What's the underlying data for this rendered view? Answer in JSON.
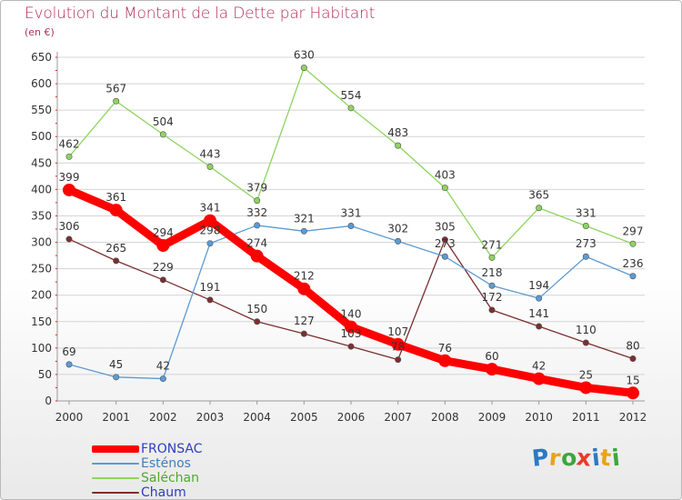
{
  "header": {
    "title": "Evolution du Montant de la Dette par Habitant",
    "subtitle": "(en €)"
  },
  "colors": {
    "title": "#b3305e",
    "axis_text": "#333333",
    "grid": "#d4d4d4",
    "fronsac": "#ff0000",
    "estenos": "#5b9bd5",
    "salechan": "#8ed45f",
    "chaum": "#7b2f2f"
  },
  "chart_data": {
    "type": "line",
    "title": "Evolution du Montant de la Dette par Habitant",
    "ylabel": "(en €)",
    "x": [
      "2000",
      "2001",
      "2002",
      "2003",
      "2004",
      "2005",
      "2006",
      "2007",
      "2008",
      "2009",
      "2010",
      "2011",
      "2012"
    ],
    "ylim": [
      0,
      650
    ],
    "yticks": [
      0,
      50,
      100,
      150,
      200,
      250,
      300,
      350,
      400,
      450,
      500,
      550,
      600,
      650
    ],
    "grid": true,
    "legend_position": "bottom-left",
    "series": [
      {
        "name": "FRONSAC",
        "color": "#ff0000",
        "values": [
          399,
          361,
          294,
          341,
          274,
          212,
          140,
          107,
          76,
          60,
          42,
          25,
          15
        ]
      },
      {
        "name": "Esténos",
        "color": "#5b9bd5",
        "values": [
          69,
          45,
          42,
          298,
          332,
          321,
          331,
          302,
          273,
          218,
          194,
          273,
          236
        ]
      },
      {
        "name": "Saléchan",
        "color": "#8ed45f",
        "values": [
          462,
          567,
          504,
          443,
          379,
          630,
          554,
          483,
          403,
          271,
          365,
          331,
          297
        ]
      },
      {
        "name": "Chaum",
        "color": "#7b2f2f",
        "values": [
          306,
          265,
          229,
          191,
          150,
          127,
          103,
          78,
          305,
          172,
          141,
          110,
          80
        ]
      }
    ]
  },
  "logo": {
    "letters": [
      "P",
      "r",
      "o",
      "x",
      "i",
      "t",
      "i"
    ],
    "colors": [
      "#2b79c2",
      "#e8a317",
      "#3da63d",
      "#e63c2c",
      "#2b79c2",
      "#e8a317",
      "#3da63d"
    ]
  }
}
